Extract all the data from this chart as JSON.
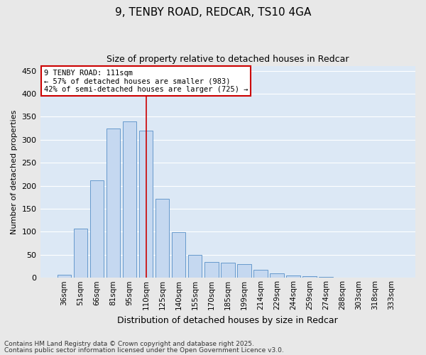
{
  "title1": "9, TENBY ROAD, REDCAR, TS10 4GA",
  "title2": "Size of property relative to detached houses in Redcar",
  "xlabel": "Distribution of detached houses by size in Redcar",
  "ylabel": "Number of detached properties",
  "categories": [
    "36sqm",
    "51sqm",
    "66sqm",
    "81sqm",
    "95sqm",
    "110sqm",
    "125sqm",
    "140sqm",
    "155sqm",
    "170sqm",
    "185sqm",
    "199sqm",
    "214sqm",
    "229sqm",
    "244sqm",
    "259sqm",
    "274sqm",
    "288sqm",
    "303sqm",
    "318sqm",
    "333sqm"
  ],
  "values": [
    7,
    107,
    212,
    325,
    340,
    320,
    172,
    99,
    50,
    35,
    33,
    29,
    17,
    9,
    5,
    4,
    2,
    1,
    0,
    0,
    0
  ],
  "bar_color": "#c5d8f0",
  "bar_edge_color": "#6699cc",
  "plot_bg_color": "#dce8f5",
  "fig_bg_color": "#e8e8e8",
  "grid_color": "#ffffff",
  "vline_color": "#cc0000",
  "vline_x": 5,
  "annotation_text": "9 TENBY ROAD: 111sqm\n← 57% of detached houses are smaller (983)\n42% of semi-detached houses are larger (725) →",
  "annotation_box_facecolor": "#ffffff",
  "annotation_box_edgecolor": "#cc0000",
  "footer1": "Contains HM Land Registry data © Crown copyright and database right 2025.",
  "footer2": "Contains public sector information licensed under the Open Government Licence v3.0.",
  "ylim": [
    0,
    460
  ],
  "yticks": [
    0,
    50,
    100,
    150,
    200,
    250,
    300,
    350,
    400,
    450
  ],
  "title1_fontsize": 11,
  "title2_fontsize": 9,
  "ylabel_fontsize": 8,
  "xlabel_fontsize": 9,
  "tick_fontsize": 8,
  "xtick_fontsize": 7.5,
  "footer_fontsize": 6.5
}
